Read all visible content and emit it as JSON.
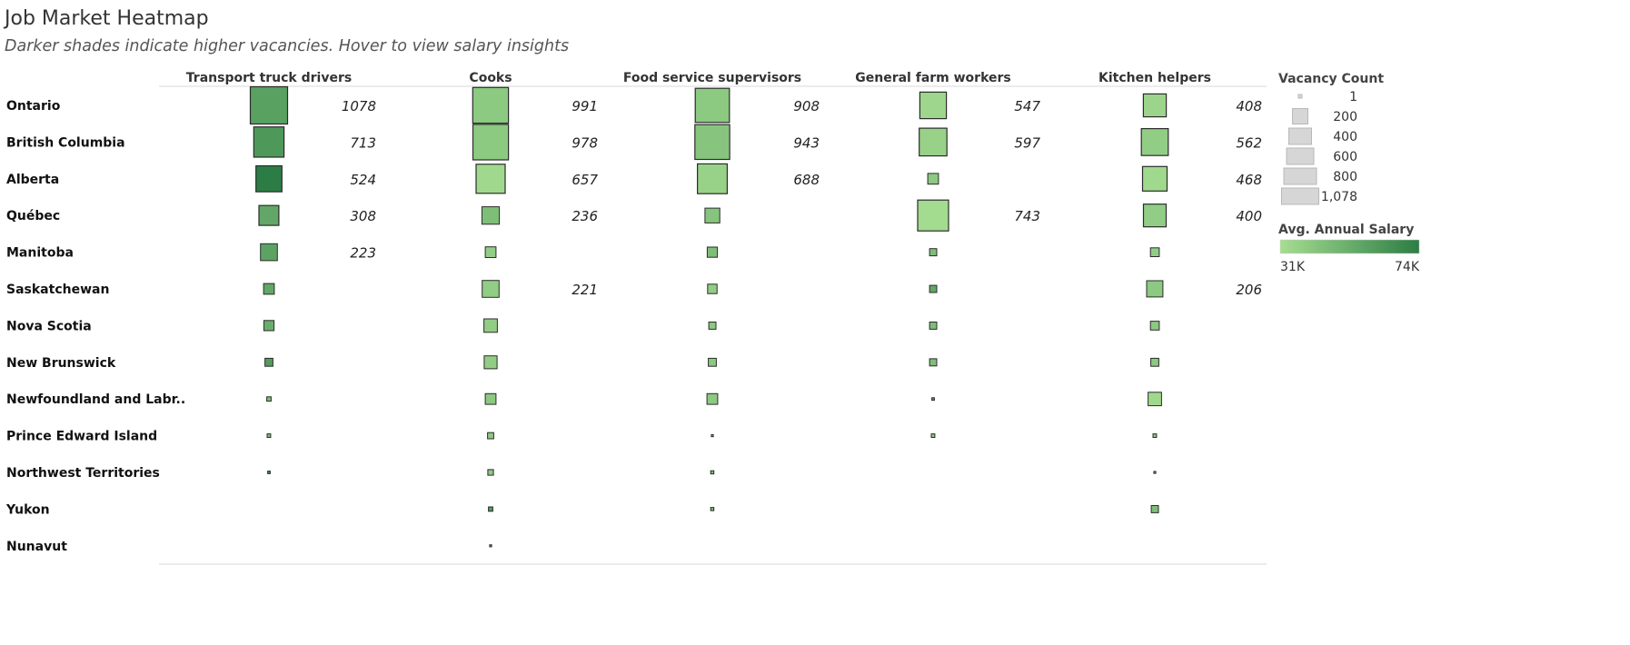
{
  "header": {
    "title": "Job Market Heatmap",
    "subtitle": "Darker shades indicate higher vacancies. Hover to view salary insights"
  },
  "chart_data": {
    "type": "heatmap",
    "mark": "square",
    "size_encodes": "Vacancy Count",
    "color_encodes": "Avg. Annual Salary",
    "columns": [
      "Transport truck drivers",
      "Cooks",
      "Food service supervisors",
      "General farm workers",
      "Kitchen helpers"
    ],
    "rows": [
      "Ontario",
      "British Columbia",
      "Alberta",
      "Québec",
      "Manitoba",
      "Saskatchewan",
      "Nova Scotia",
      "New Brunswick",
      "Newfoundland and Labr..",
      "Prince Edward Island",
      "Northwest Territories",
      "Yukon",
      "Nunavut"
    ],
    "vacancies": [
      [
        1078,
        991,
        908,
        547,
        408
      ],
      [
        713,
        978,
        943,
        597,
        562
      ],
      [
        524,
        657,
        688,
        90,
        468
      ],
      [
        308,
        236,
        170,
        743,
        400
      ],
      [
        223,
        90,
        80,
        40,
        60
      ],
      [
        90,
        221,
        70,
        40,
        206
      ],
      [
        80,
        140,
        40,
        40,
        60
      ],
      [
        50,
        130,
        50,
        40,
        50
      ],
      [
        15,
        90,
        90,
        5,
        140
      ],
      [
        10,
        30,
        3,
        10,
        10
      ],
      [
        5,
        25,
        8,
        null,
        3
      ],
      [
        null,
        15,
        8,
        null,
        40
      ],
      [
        null,
        3,
        null,
        null,
        null
      ]
    ],
    "labeled_threshold": 200,
    "avg_salary": [
      [
        58000,
        40000,
        40000,
        34000,
        35000
      ],
      [
        62000,
        40000,
        42000,
        36000,
        38000
      ],
      [
        74000,
        33000,
        36000,
        40000,
        33000
      ],
      [
        55000,
        45000,
        42000,
        32000,
        38000
      ],
      [
        57000,
        38000,
        45000,
        45000,
        38000
      ],
      [
        55000,
        38000,
        38000,
        55000,
        40000
      ],
      [
        52000,
        38000,
        40000,
        45000,
        40000
      ],
      [
        60000,
        38000,
        40000,
        45000,
        40000
      ],
      [
        45000,
        40000,
        40000,
        60000,
        33000
      ],
      [
        45000,
        40000,
        45000,
        40000,
        40000
      ],
      [
        65000,
        40000,
        45000,
        null,
        50000
      ],
      [
        null,
        60000,
        45000,
        null,
        45000
      ],
      [
        null,
        55000,
        null,
        null,
        null
      ]
    ],
    "legend_size": {
      "title": "Vacancy Count",
      "values": [
        1,
        200,
        400,
        600,
        800,
        1078
      ],
      "labels": [
        "1",
        "200",
        "400",
        "600",
        "800",
        "1,078"
      ]
    },
    "legend_color": {
      "title": "Avg. Annual Salary",
      "min_label": "31K",
      "max_label": "74K",
      "min_value": 31000,
      "max_value": 74000,
      "color_low": "#a6dd91",
      "color_high": "#2c7d45"
    }
  }
}
